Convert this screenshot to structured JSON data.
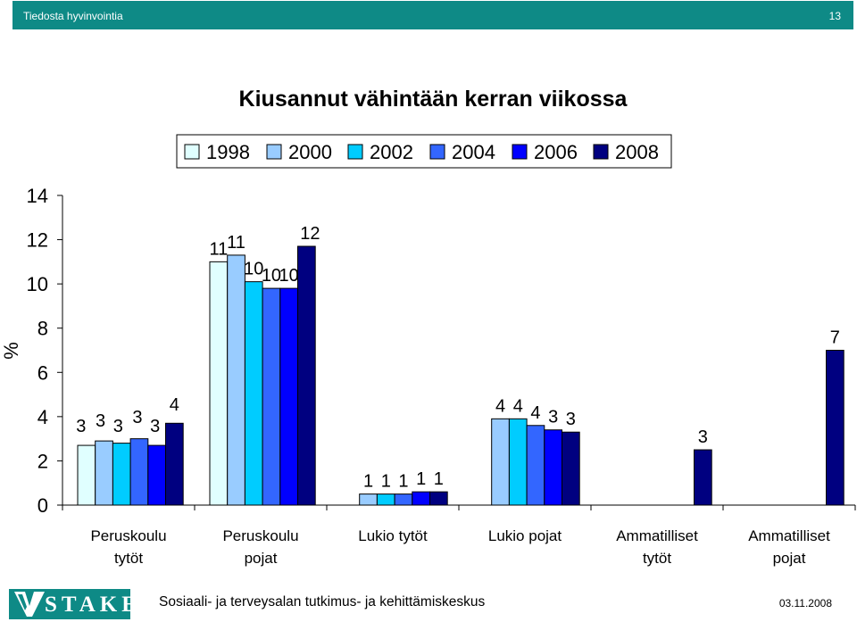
{
  "header": {
    "title": "Tiedosta hyvinvointia",
    "page_number": "13"
  },
  "footer": {
    "logo_text": "STAKES",
    "organization": "Sosiaali- ja terveysalan tutkimus- ja kehittämiskeskus",
    "date": "03.11.2008"
  },
  "colors": {
    "header_bg": "#0e8a86"
  },
  "chart_data": {
    "type": "bar",
    "title": "Kiusannut vähintään kerran viikossa",
    "ylabel": "%",
    "xlabel": "",
    "ylim": [
      0,
      14
    ],
    "yticks": [
      "0",
      "2",
      "4",
      "6",
      "8",
      "10",
      "12",
      "14"
    ],
    "grid": false,
    "legend_position": "top",
    "categories": [
      [
        "Peruskoulu",
        "tytöt"
      ],
      [
        "Peruskoulu",
        "pojat"
      ],
      [
        "Lukio tytöt"
      ],
      [
        "Lukio pojat"
      ],
      [
        "Ammatilliset",
        "tytöt"
      ],
      [
        "Ammatilliset",
        "pojat"
      ]
    ],
    "series": [
      {
        "name": "1998",
        "color": "#e0ffff",
        "values": [
          2.7,
          11.0,
          null,
          null,
          null,
          null
        ],
        "labels": [
          "3",
          "11",
          "",
          "",
          "",
          ""
        ]
      },
      {
        "name": "2000",
        "color": "#99ccff",
        "values": [
          2.9,
          11.3,
          0.5,
          3.9,
          null,
          null
        ],
        "labels": [
          "3",
          "11",
          "1",
          "4",
          "",
          ""
        ]
      },
      {
        "name": "2002",
        "color": "#00ccff",
        "values": [
          2.8,
          10.1,
          0.5,
          3.9,
          null,
          null
        ],
        "labels": [
          "3",
          "10",
          "1",
          "4",
          "",
          ""
        ]
      },
      {
        "name": "2004",
        "color": "#3366ff",
        "values": [
          3.0,
          9.8,
          0.5,
          3.6,
          null,
          null
        ],
        "labels": [
          "3",
          "10",
          "1",
          "4",
          "",
          ""
        ]
      },
      {
        "name": "2006",
        "color": "#0000ff",
        "values": [
          2.7,
          9.8,
          0.6,
          3.4,
          null,
          null
        ],
        "labels": [
          "3",
          "10",
          "1",
          "3",
          "",
          ""
        ]
      },
      {
        "name": "2008",
        "color": "#000080",
        "values": [
          3.7,
          11.7,
          0.6,
          3.3,
          2.5,
          7.0
        ],
        "labels": [
          "4",
          "12",
          "1",
          "3",
          "3",
          "7"
        ]
      }
    ]
  }
}
